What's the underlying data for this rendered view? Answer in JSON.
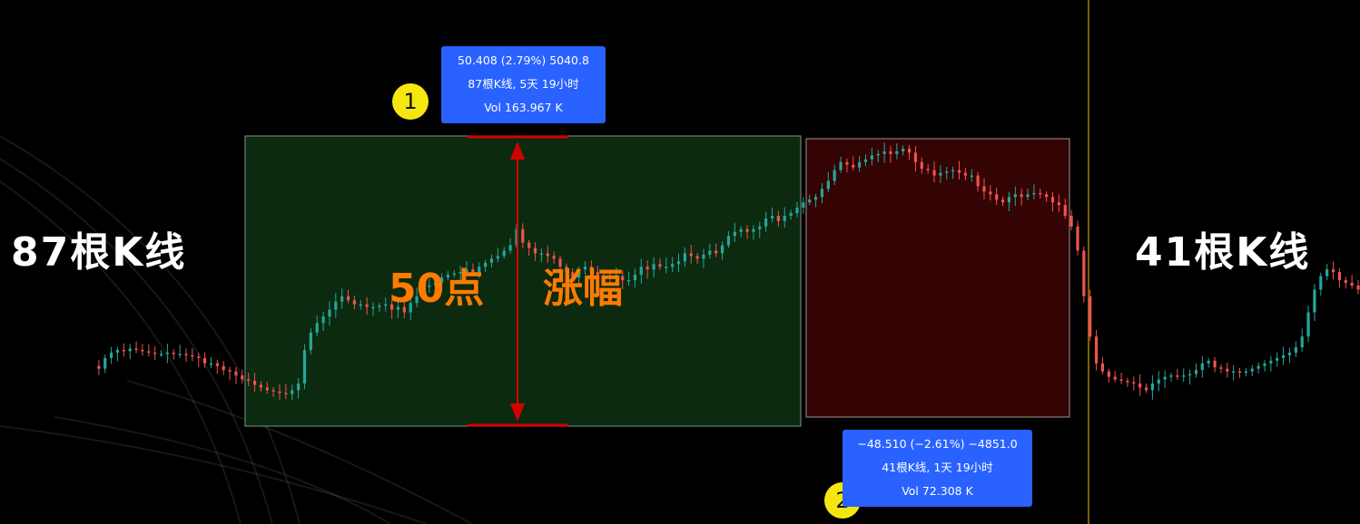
{
  "colors": {
    "background": "#000000",
    "up_candle": "#26a69a",
    "down_candle": "#ef5350",
    "up_box_fill": "#0b2a0f",
    "down_box_fill": "#340303",
    "measure_red": "#d50000",
    "info_blue": "#2962ff",
    "badge_yellow": "#f5e60f",
    "label_orange": "#ff7a00",
    "cursor_line": "#c8a000"
  },
  "labels": {
    "left_bars": "87根K线",
    "right_bars": "41根K线",
    "rise_points": "50点",
    "rise_word": "涨幅"
  },
  "measure_up": {
    "badge": "1",
    "line1": "50.408 (2.79%) 5040.8",
    "line2": "87根K线, 5天 19小时",
    "line3": "Vol 163.967 K"
  },
  "measure_down": {
    "badge": "2",
    "line1": "−48.510 (−2.61%) −4851.0",
    "line2": "41根K线, 1天 19小时",
    "line3": "Vol 72.308 K"
  },
  "chart_data": {
    "type": "candlestick",
    "grid": false,
    "legend": "none",
    "price_series": [
      0.38,
      0.36,
      0.44,
      0.48,
      0.5,
      0.49,
      0.51,
      0.5,
      0.49,
      0.48,
      0.47,
      0.47,
      0.48,
      0.47,
      0.47,
      0.46,
      0.45,
      0.44,
      0.4,
      0.4,
      0.38,
      0.35,
      0.34,
      0.31,
      0.28,
      0.27,
      0.24,
      0.22,
      0.2,
      0.19,
      0.18,
      0.17,
      0.2,
      0.25,
      0.5,
      0.63,
      0.7,
      0.75,
      0.8,
      0.86,
      0.9,
      0.87,
      0.84,
      0.84,
      0.82,
      0.82,
      0.83,
      0.84,
      0.8,
      0.82,
      0.78,
      0.85,
      0.9,
      0.98,
      0.98,
      1.0,
      1.04,
      1.06,
      1.07,
      1.08,
      1.1,
      1.08,
      1.12,
      1.15,
      1.18,
      1.2,
      1.24,
      1.28,
      1.4,
      1.3,
      1.26,
      1.22,
      1.22,
      1.2,
      1.18,
      1.12,
      1.08,
      1.04,
      1.1,
      1.12,
      1.08,
      1.05,
      1.04,
      1.03,
      1.05,
      1.02,
      1.02,
      1.06,
      1.12,
      1.1,
      1.14,
      1.12,
      1.12,
      1.14,
      1.16,
      1.22,
      1.2,
      1.18,
      1.21,
      1.24,
      1.22,
      1.28,
      1.35,
      1.38,
      1.4,
      1.38,
      1.4,
      1.42,
      1.48,
      1.5,
      1.46,
      1.5,
      1.52,
      1.56,
      1.6,
      1.62,
      1.64,
      1.7,
      1.76,
      1.84,
      1.9,
      1.88,
      1.86,
      1.9,
      1.92,
      1.95,
      1.96,
      1.98,
      1.96,
      1.98,
      2.0,
      1.97,
      1.9,
      1.85,
      1.84,
      1.8,
      1.82,
      1.83,
      1.84,
      1.82,
      1.8,
      1.8,
      1.72,
      1.68,
      1.66,
      1.62,
      1.6,
      1.64,
      1.66,
      1.64,
      1.66,
      1.67,
      1.66,
      1.64,
      1.6,
      1.58,
      1.5,
      1.42,
      1.24,
      0.9,
      0.6,
      0.4,
      0.34,
      0.3,
      0.28,
      0.27,
      0.26,
      0.25,
      0.22,
      0.2,
      0.25,
      0.28,
      0.3,
      0.31,
      0.3,
      0.31,
      0.32,
      0.35,
      0.4,
      0.42,
      0.37,
      0.36,
      0.34,
      0.34,
      0.33,
      0.34,
      0.36,
      0.38,
      0.4,
      0.42,
      0.44,
      0.46,
      0.48,
      0.52,
      0.6,
      0.78,
      0.95,
      1.05,
      1.1,
      1.08,
      1.02,
      1.0,
      0.98,
      0.95
    ],
    "measurements": [
      {
        "direction": "up",
        "bars": 87,
        "change": 50.408,
        "change_pct": 2.79,
        "ticks": 5040.8,
        "duration": "5天 19小时",
        "volume": "163.967 K"
      },
      {
        "direction": "down",
        "bars": 41,
        "change": -48.51,
        "change_pct": -2.61,
        "ticks": -4851.0,
        "duration": "1天 19小时",
        "volume": "72.308 K"
      }
    ]
  }
}
